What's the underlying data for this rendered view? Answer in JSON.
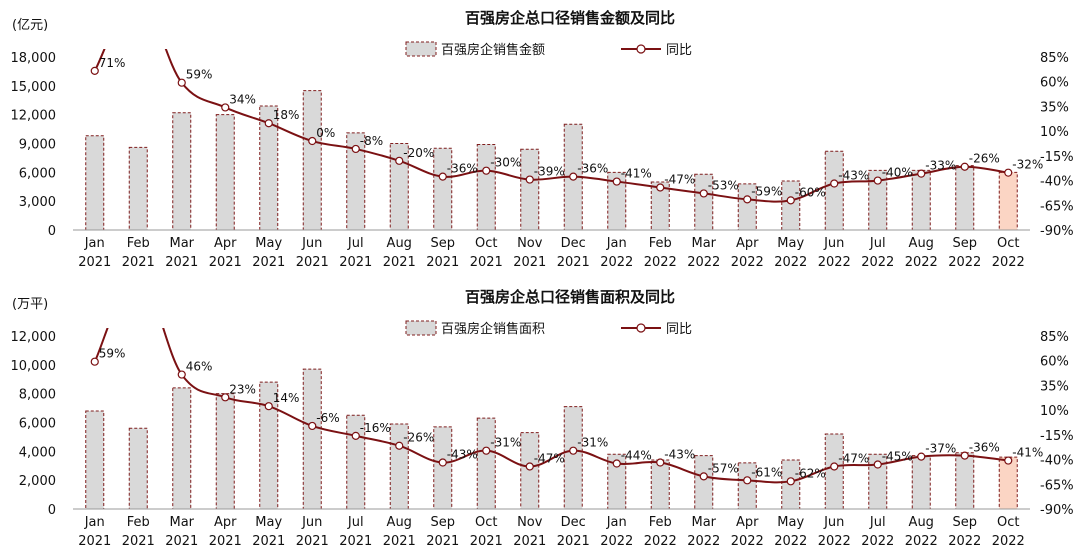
{
  "colors": {
    "bar_fill": "#d9d9d9",
    "bar_stroke": "#7f1d1d",
    "bar_last_fill": "#fbd5c4",
    "line": "#7b1113",
    "marker_fill": "#ffffff",
    "last_label": "#e60000"
  },
  "chart_data": [
    {
      "type": "bar+line",
      "title": "百强房企总口径销售金额及同比",
      "unit_label": "(亿元)",
      "legend": {
        "bar": "百强房企销售金额",
        "line": "同比"
      },
      "categories": [
        "Jan",
        "Feb",
        "Mar",
        "Apr",
        "May",
        "Jun",
        "Jul",
        "Aug",
        "Sep",
        "Oct",
        "Nov",
        "Dec",
        "Jan",
        "Feb",
        "Mar",
        "Apr",
        "May",
        "Jun",
        "Jul",
        "Aug",
        "Sep",
        "Oct"
      ],
      "years": [
        "2021",
        "2021",
        "2021",
        "2021",
        "2021",
        "2021",
        "2021",
        "2021",
        "2021",
        "2021",
        "2021",
        "2021",
        "2022",
        "2022",
        "2022",
        "2022",
        "2022",
        "2022",
        "2022",
        "2022",
        "2022",
        "2022"
      ],
      "bar_values": [
        9800,
        8600,
        12200,
        12000,
        12900,
        14500,
        10100,
        9000,
        8500,
        8900,
        8400,
        11000,
        6000,
        5000,
        5800,
        4800,
        5100,
        8200,
        6200,
        6200,
        6700,
        6000
      ],
      "yoy_values": [
        71,
        null,
        59,
        34,
        18,
        0,
        -8,
        -20,
        -36,
        -30,
        -39,
        -36,
        -41,
        -47,
        -53,
        -59,
        -60,
        -43,
        -40,
        -33,
        -26,
        -32
      ],
      "yoy_labels": [
        "71%",
        "",
        "59%",
        "34%",
        "18%",
        "0%",
        "-8%",
        "-20%",
        "-36%",
        "-30%",
        "-39%",
        "-36%",
        "-41%",
        "-47%",
        "-53%",
        "-59%",
        "-60%",
        "-43%",
        "-40%",
        "-33%",
        "-26%",
        "-32%"
      ],
      "left_axis": {
        "min": 0,
        "max": 18000,
        "step": 3000,
        "ticks": [
          "0",
          "3,000",
          "6,000",
          "9,000",
          "12,000",
          "15,000",
          "18,000"
        ]
      },
      "right_axis": {
        "min": -90,
        "max": 85,
        "step": 25,
        "ticks": [
          "-90%",
          "-65%",
          "-40%",
          "-15%",
          "10%",
          "35%",
          "60%",
          "85%"
        ]
      }
    },
    {
      "type": "bar+line",
      "title": "百强房企总口径销售面积及同比",
      "unit_label": "(万平)",
      "legend": {
        "bar": "百强房企销售面积",
        "line": "同比"
      },
      "categories": [
        "Jan",
        "Feb",
        "Mar",
        "Apr",
        "May",
        "Jun",
        "Jul",
        "Aug",
        "Sep",
        "Oct",
        "Nov",
        "Dec",
        "Jan",
        "Feb",
        "Mar",
        "Apr",
        "May",
        "Jun",
        "Jul",
        "Aug",
        "Sep",
        "Oct"
      ],
      "years": [
        "2021",
        "2021",
        "2021",
        "2021",
        "2021",
        "2021",
        "2021",
        "2021",
        "2021",
        "2021",
        "2021",
        "2021",
        "2022",
        "2022",
        "2022",
        "2022",
        "2022",
        "2022",
        "2022",
        "2022",
        "2022",
        "2022"
      ],
      "bar_values": [
        6800,
        5600,
        8400,
        8000,
        8800,
        9700,
        6500,
        5900,
        5700,
        6300,
        5300,
        7100,
        3800,
        3400,
        3700,
        3200,
        3400,
        5200,
        3800,
        3700,
        3900,
        3600
      ],
      "yoy_values": [
        59,
        null,
        46,
        23,
        14,
        -6,
        -16,
        -26,
        -43,
        -31,
        -47,
        -31,
        -44,
        -43,
        -57,
        -61,
        -62,
        -47,
        -45,
        -37,
        -36,
        -41
      ],
      "yoy_labels": [
        "59%",
        "",
        "46%",
        "23%",
        "14%",
        "-6%",
        "-16%",
        "-26%",
        "-43%",
        "-31%",
        "-47%",
        "-31%",
        "-44%",
        "-43%",
        "-57%",
        "-61%",
        "-62%",
        "-47%",
        "-45%",
        "-37%",
        "-36%",
        "-41%"
      ],
      "left_axis": {
        "min": 0,
        "max": 12000,
        "step": 2000,
        "ticks": [
          "0",
          "2,000",
          "4,000",
          "6,000",
          "8,000",
          "10,000",
          "12,000"
        ]
      },
      "right_axis": {
        "min": -90,
        "max": 85,
        "step": 25,
        "ticks": [
          "-90%",
          "-65%",
          "-40%",
          "-15%",
          "10%",
          "35%",
          "60%",
          "85%"
        ]
      }
    }
  ]
}
